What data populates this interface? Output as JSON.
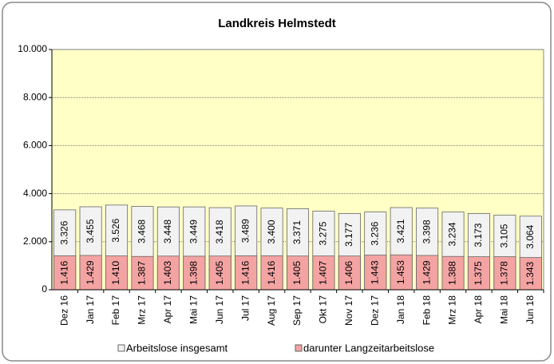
{
  "chart_data": {
    "type": "bar",
    "title": "Landkreis Helmstedt",
    "categories": [
      "Dez 16",
      "Jan 17",
      "Feb 17",
      "Mrz 17",
      "Apr 17",
      "Mai 17",
      "Jun 17",
      "Jul 17",
      "Aug 17",
      "Sep 17",
      "Okt 17",
      "Nov 17",
      "Dez 17",
      "Jan 18",
      "Feb 18",
      "Mrz 18",
      "Apr 18",
      "Mai 18",
      "Jun 18"
    ],
    "series": [
      {
        "name": "Arbeitslose insgesamt",
        "color": "#f2f2f2",
        "values": [
          3326,
          3455,
          3526,
          3468,
          3448,
          3449,
          3418,
          3489,
          3400,
          3371,
          3275,
          3177,
          3236,
          3421,
          3398,
          3234,
          3173,
          3105,
          3064
        ],
        "value_labels": [
          "3.326",
          "3.455",
          "3.526",
          "3.468",
          "3.448",
          "3.449",
          "3.418",
          "3.489",
          "3.400",
          "3.371",
          "3.275",
          "3.177",
          "3.236",
          "3.421",
          "3.398",
          "3.234",
          "3.173",
          "3.105",
          "3.064"
        ]
      },
      {
        "name": "darunter Langzeitarbeitslose",
        "color": "#f4a3a3",
        "values": [
          1416,
          1429,
          1410,
          1387,
          1403,
          1398,
          1405,
          1416,
          1416,
          1405,
          1407,
          1406,
          1443,
          1453,
          1429,
          1388,
          1375,
          1378,
          1343
        ],
        "value_labels": [
          "1.416",
          "1.429",
          "1.410",
          "1.387",
          "1.403",
          "1.398",
          "1.405",
          "1.416",
          "1.416",
          "1.405",
          "1.407",
          "1.406",
          "1.443",
          "1.453",
          "1.429",
          "1.388",
          "1.375",
          "1.378",
          "1.343"
        ]
      }
    ],
    "ylim": [
      0,
      10000
    ],
    "yticks": [
      0,
      {
        "value": 2000,
        "label": "2.000"
      },
      {
        "value": 4000,
        "label": "4.000"
      },
      {
        "value": 6000,
        "label": "6.000"
      },
      {
        "value": 8000,
        "label": "8.000"
      },
      {
        "value": 10000,
        "label": "10.000"
      }
    ],
    "grid": true,
    "plot_background": "#ffffc6",
    "legend": "bottom"
  }
}
